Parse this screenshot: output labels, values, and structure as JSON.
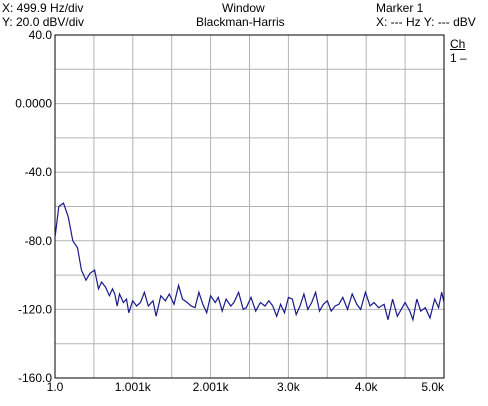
{
  "header": {
    "x_scale": "X: 499.9 Hz/div",
    "y_scale": "Y: 20.0 dBV/div",
    "window_label": "Window",
    "window_value": "Blackman-Harris",
    "marker_label": "Marker 1",
    "marker_value": "X: --- Hz Y: --- dBV"
  },
  "channel": {
    "label": "Ch",
    "value": "1 –"
  },
  "colors": {
    "trace": "#1a1a8c",
    "grid": "#b4b4b4",
    "frame": "#000000"
  },
  "chart_data": {
    "type": "line",
    "xlabel": "",
    "ylabel": "",
    "xlim": [
      1.0,
      5000.0
    ],
    "ylim": [
      -160,
      40
    ],
    "grid": true,
    "x_ticks": [
      "1.0",
      "1.001k",
      "2.001k",
      "3.0k",
      "4.0k",
      "5.0k"
    ],
    "y_ticks": [
      "40.0",
      "0.0000",
      "-40.0",
      "-80.0",
      "-120.0",
      "-160.0"
    ],
    "series": [
      {
        "values": [
          [
            1,
            -78
          ],
          [
            50,
            -60
          ],
          [
            110,
            -58
          ],
          [
            170,
            -66
          ],
          [
            230,
            -80
          ],
          [
            290,
            -84
          ],
          [
            340,
            -97
          ],
          [
            400,
            -103
          ],
          [
            450,
            -99
          ],
          [
            510,
            -97
          ],
          [
            560,
            -108
          ],
          [
            600,
            -104
          ],
          [
            650,
            -107
          ],
          [
            700,
            -112
          ],
          [
            740,
            -108
          ],
          [
            770,
            -111
          ],
          [
            800,
            -118
          ],
          [
            830,
            -111
          ],
          [
            880,
            -116
          ],
          [
            920,
            -114
          ],
          [
            950,
            -122
          ],
          [
            1000,
            -115
          ],
          [
            1050,
            -118
          ],
          [
            1100,
            -116
          ],
          [
            1150,
            -110
          ],
          [
            1200,
            -118
          ],
          [
            1260,
            -115
          ],
          [
            1300,
            -124
          ],
          [
            1360,
            -112
          ],
          [
            1420,
            -115
          ],
          [
            1470,
            -111
          ],
          [
            1530,
            -117
          ],
          [
            1590,
            -106
          ],
          [
            1640,
            -114
          ],
          [
            1700,
            -116
          ],
          [
            1750,
            -118
          ],
          [
            1800,
            -119
          ],
          [
            1850,
            -110
          ],
          [
            1900,
            -117
          ],
          [
            1950,
            -122
          ],
          [
            2000,
            -112
          ],
          [
            2060,
            -116
          ],
          [
            2100,
            -113
          ],
          [
            2150,
            -121
          ],
          [
            2200,
            -114
          ],
          [
            2260,
            -118
          ],
          [
            2300,
            -116
          ],
          [
            2360,
            -110
          ],
          [
            2420,
            -120
          ],
          [
            2460,
            -119
          ],
          [
            2520,
            -113
          ],
          [
            2580,
            -121
          ],
          [
            2640,
            -116
          ],
          [
            2700,
            -118
          ],
          [
            2750,
            -115
          ],
          [
            2800,
            -118
          ],
          [
            2850,
            -124
          ],
          [
            2900,
            -117
          ],
          [
            2950,
            -122
          ],
          [
            3000,
            -113
          ],
          [
            3050,
            -114
          ],
          [
            3100,
            -123
          ],
          [
            3150,
            -118
          ],
          [
            3200,
            -111
          ],
          [
            3250,
            -120
          ],
          [
            3300,
            -116
          ],
          [
            3350,
            -110
          ],
          [
            3400,
            -121
          ],
          [
            3450,
            -117
          ],
          [
            3500,
            -115
          ],
          [
            3550,
            -121
          ],
          [
            3600,
            -118
          ],
          [
            3650,
            -117
          ],
          [
            3700,
            -113
          ],
          [
            3760,
            -120
          ],
          [
            3820,
            -111
          ],
          [
            3880,
            -117
          ],
          [
            3930,
            -120
          ],
          [
            3990,
            -110
          ],
          [
            4050,
            -118
          ],
          [
            4100,
            -116
          ],
          [
            4160,
            -119
          ],
          [
            4230,
            -117
          ],
          [
            4280,
            -126
          ],
          [
            4340,
            -114
          ],
          [
            4400,
            -124
          ],
          [
            4450,
            -120
          ],
          [
            4500,
            -116
          ],
          [
            4560,
            -121
          ],
          [
            4600,
            -126
          ],
          [
            4650,
            -114
          ],
          [
            4700,
            -121
          ],
          [
            4760,
            -119
          ],
          [
            4820,
            -125
          ],
          [
            4880,
            -114
          ],
          [
            4930,
            -119
          ],
          [
            4970,
            -110
          ],
          [
            5000,
            -116
          ]
        ]
      }
    ]
  }
}
